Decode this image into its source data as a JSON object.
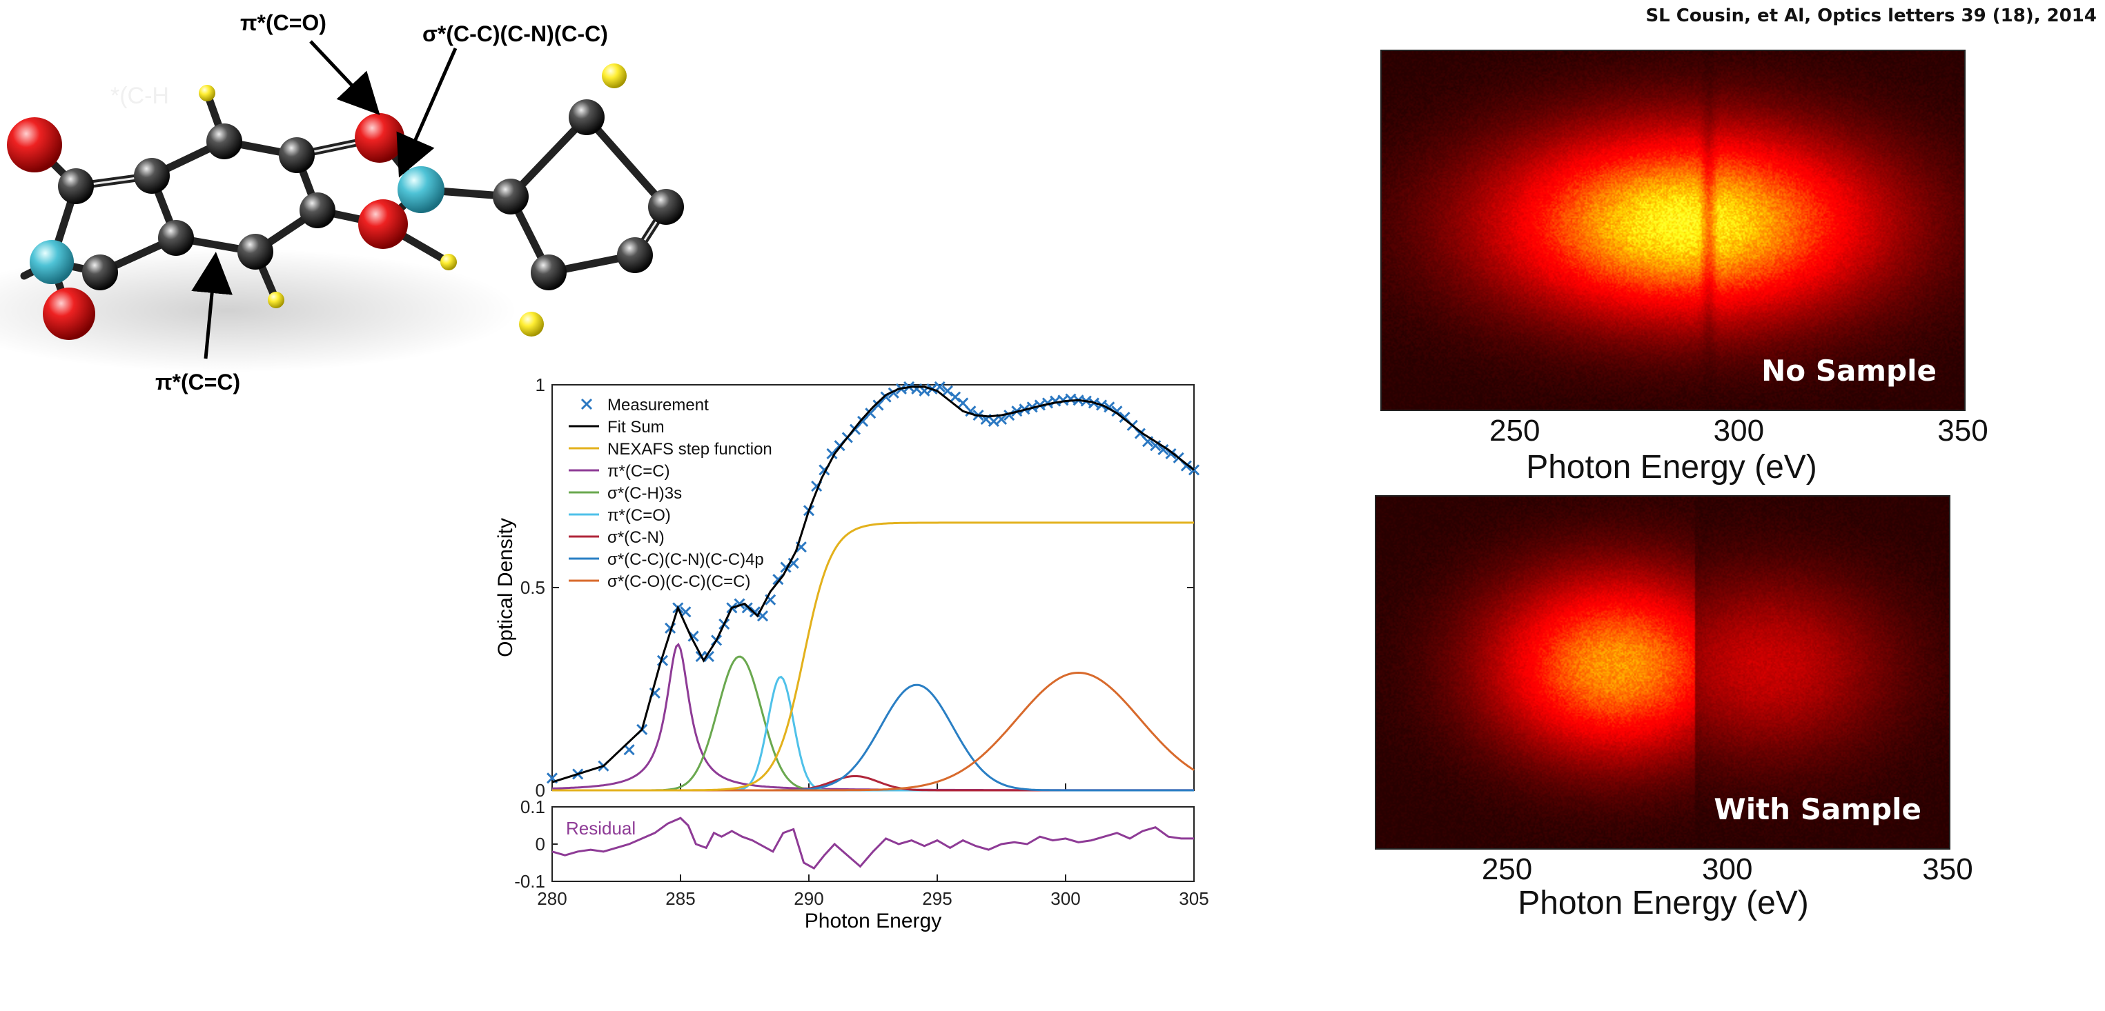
{
  "citation": "SL Cousin, et Al, Optics letters 39 (18), 2014",
  "molecule": {
    "annotations": [
      {
        "text": "π*(C=O)"
      },
      {
        "text": "σ*(C-C)(C-N)(C-C)"
      },
      {
        "text": "π*(C=C)"
      }
    ],
    "faint_text": "*(C-H"
  },
  "chart_data": [
    {
      "type": "line",
      "title": "",
      "xlabel": "Photon Energy",
      "ylabel": "Optical Density",
      "xlim": [
        280,
        305
      ],
      "ylim": [
        0,
        1
      ],
      "x_ticks": [
        "280",
        "285",
        "290",
        "295",
        "300",
        "305"
      ],
      "y_ticks": [
        "0",
        "0.5",
        "1"
      ],
      "legend_position": "top-left",
      "legend": [
        {
          "label": "Measurement",
          "color": "#2b78c2",
          "marker": "x"
        },
        {
          "label": "Fit Sum",
          "color": "#000000"
        },
        {
          "label": "NEXAFS step function",
          "color": "#e3b11c"
        },
        {
          "label": "π*(C=C)",
          "color": "#8e3b96"
        },
        {
          "label": "σ*(C-H)3s",
          "color": "#6aa84f"
        },
        {
          "label": "π*(C=O)",
          "color": "#4fc1e9"
        },
        {
          "label": "σ*(C-N)",
          "color": "#b0263a"
        },
        {
          "label": "σ*(C-C)(C-N)(C-C)4p",
          "color": "#2a7fc4"
        },
        {
          "label": "σ*(C-O)(C-C)(C=C)",
          "color": "#d86a2c"
        }
      ],
      "step_function": {
        "center": 289.8,
        "width": 0.55,
        "height": 0.66
      },
      "peaks": [
        {
          "name": "π*(C=C)",
          "center": 284.9,
          "height": 0.36,
          "width": 0.55,
          "shape": "lorentzian"
        },
        {
          "name": "σ*(C-H)3s",
          "center": 287.3,
          "height": 0.33,
          "width": 0.85,
          "shape": "gaussian"
        },
        {
          "name": "π*(C=O)",
          "center": 288.9,
          "height": 0.28,
          "width": 0.5,
          "shape": "gaussian"
        },
        {
          "name": "σ*(C-N)",
          "center": 291.8,
          "height": 0.035,
          "width": 0.9,
          "shape": "gaussian"
        },
        {
          "name": "σ*(C-C)(C-N)(C-C)4p",
          "center": 294.2,
          "height": 0.26,
          "width": 1.4,
          "shape": "gaussian"
        },
        {
          "name": "σ*(C-O)(C-C)(C=C)",
          "center": 300.5,
          "height": 0.29,
          "width": 2.4,
          "shape": "gaussian"
        }
      ],
      "fit_sum": {
        "x": [
          280,
          282,
          283.5,
          284.2,
          284.9,
          285.4,
          285.9,
          286.4,
          287.0,
          287.5,
          288.0,
          288.5,
          289.0,
          289.5,
          290.0,
          290.5,
          291.0,
          291.5,
          292.0,
          292.5,
          293.0,
          293.5,
          294.0,
          294.5,
          295.0,
          295.5,
          296.0,
          296.5,
          297.0,
          297.5,
          298.0,
          298.5,
          299.0,
          299.5,
          300.0,
          300.5,
          301.0,
          301.5,
          302.0,
          302.5,
          303.0,
          303.5,
          304.0,
          304.5,
          305.0
        ],
        "y": [
          0.02,
          0.06,
          0.15,
          0.31,
          0.45,
          0.38,
          0.32,
          0.37,
          0.45,
          0.46,
          0.43,
          0.49,
          0.53,
          0.59,
          0.69,
          0.77,
          0.83,
          0.87,
          0.91,
          0.945,
          0.975,
          0.99,
          0.995,
          0.995,
          0.985,
          0.96,
          0.935,
          0.925,
          0.922,
          0.925,
          0.932,
          0.94,
          0.948,
          0.955,
          0.96,
          0.962,
          0.958,
          0.948,
          0.93,
          0.905,
          0.88,
          0.86,
          0.84,
          0.815,
          0.79
        ]
      },
      "measurement": {
        "x": [
          280,
          281,
          282,
          283,
          283.5,
          284,
          284.3,
          284.6,
          284.9,
          285.2,
          285.5,
          285.8,
          286.1,
          286.4,
          286.7,
          287.0,
          287.3,
          287.6,
          287.9,
          288.2,
          288.5,
          288.8,
          289.1,
          289.4,
          289.7,
          290.0,
          290.3,
          290.6,
          290.9,
          291.2,
          291.5,
          291.8,
          292.1,
          292.4,
          292.7,
          293.0,
          293.3,
          293.6,
          293.9,
          294.2,
          294.5,
          294.8,
          295.1,
          295.4,
          295.7,
          296.0,
          296.3,
          296.6,
          296.9,
          297.2,
          297.5,
          297.8,
          298.1,
          298.4,
          298.7,
          299.0,
          299.3,
          299.6,
          299.9,
          300.2,
          300.5,
          300.8,
          301.1,
          301.4,
          301.7,
          302.0,
          302.3,
          302.6,
          302.9,
          303.2,
          303.5,
          303.8,
          304.1,
          304.4,
          304.7,
          305.0
        ],
        "y": [
          0.03,
          0.04,
          0.06,
          0.1,
          0.15,
          0.24,
          0.32,
          0.4,
          0.45,
          0.44,
          0.38,
          0.33,
          0.33,
          0.37,
          0.41,
          0.45,
          0.46,
          0.45,
          0.44,
          0.43,
          0.47,
          0.52,
          0.55,
          0.56,
          0.6,
          0.69,
          0.75,
          0.79,
          0.83,
          0.85,
          0.87,
          0.89,
          0.91,
          0.93,
          0.95,
          0.97,
          0.98,
          0.99,
          0.995,
          0.99,
          0.985,
          0.99,
          0.995,
          0.985,
          0.97,
          0.955,
          0.935,
          0.925,
          0.915,
          0.91,
          0.915,
          0.925,
          0.935,
          0.94,
          0.945,
          0.95,
          0.955,
          0.96,
          0.962,
          0.965,
          0.962,
          0.96,
          0.955,
          0.95,
          0.945,
          0.935,
          0.92,
          0.9,
          0.88,
          0.86,
          0.85,
          0.84,
          0.83,
          0.82,
          0.8,
          0.79
        ]
      },
      "residual": {
        "label": "Residual",
        "ylim": [
          -0.1,
          0.1
        ],
        "y_ticks": [
          "0.1",
          "0",
          "-0.1"
        ],
        "x": [
          280,
          280.5,
          281,
          281.5,
          282,
          282.5,
          283,
          283.5,
          284,
          284.5,
          285,
          285.3,
          285.6,
          286,
          286.3,
          286.6,
          287,
          287.4,
          287.8,
          288.2,
          288.6,
          289,
          289.4,
          289.8,
          290.2,
          290.6,
          291,
          291.5,
          292,
          292.5,
          293,
          293.5,
          294,
          294.5,
          295,
          295.5,
          296,
          296.5,
          297,
          297.5,
          298,
          298.5,
          299,
          299.5,
          300,
          300.5,
          301,
          301.5,
          302,
          302.5,
          303,
          303.5,
          304,
          304.5,
          305
        ],
        "y": [
          -0.02,
          -0.03,
          -0.02,
          -0.015,
          -0.02,
          -0.01,
          0.0,
          0.015,
          0.03,
          0.055,
          0.07,
          0.05,
          0.0,
          -0.01,
          0.03,
          0.02,
          0.035,
          0.02,
          0.01,
          -0.005,
          -0.02,
          0.03,
          0.04,
          -0.05,
          -0.065,
          -0.03,
          0.0,
          -0.03,
          -0.06,
          -0.02,
          0.015,
          0.0,
          0.01,
          -0.005,
          0.01,
          -0.01,
          0.01,
          -0.005,
          -0.015,
          0.0,
          0.005,
          0.0,
          0.02,
          0.01,
          0.015,
          0.005,
          0.01,
          0.02,
          0.03,
          0.015,
          0.035,
          0.045,
          0.02,
          0.015,
          0.015
        ]
      }
    },
    {
      "type": "heatmap",
      "label": "No Sample",
      "xlabel": "Photon Energy (eV)",
      "x_ticks": [
        "250",
        "300",
        "350"
      ],
      "xlim": [
        220,
        350
      ],
      "edge_energy": 290
    },
    {
      "type": "heatmap",
      "label": "With Sample",
      "xlabel": "Photon Energy (eV)",
      "x_ticks": [
        "250",
        "300",
        "350"
      ],
      "xlim": [
        220,
        350
      ],
      "edge_energy": 290
    }
  ]
}
